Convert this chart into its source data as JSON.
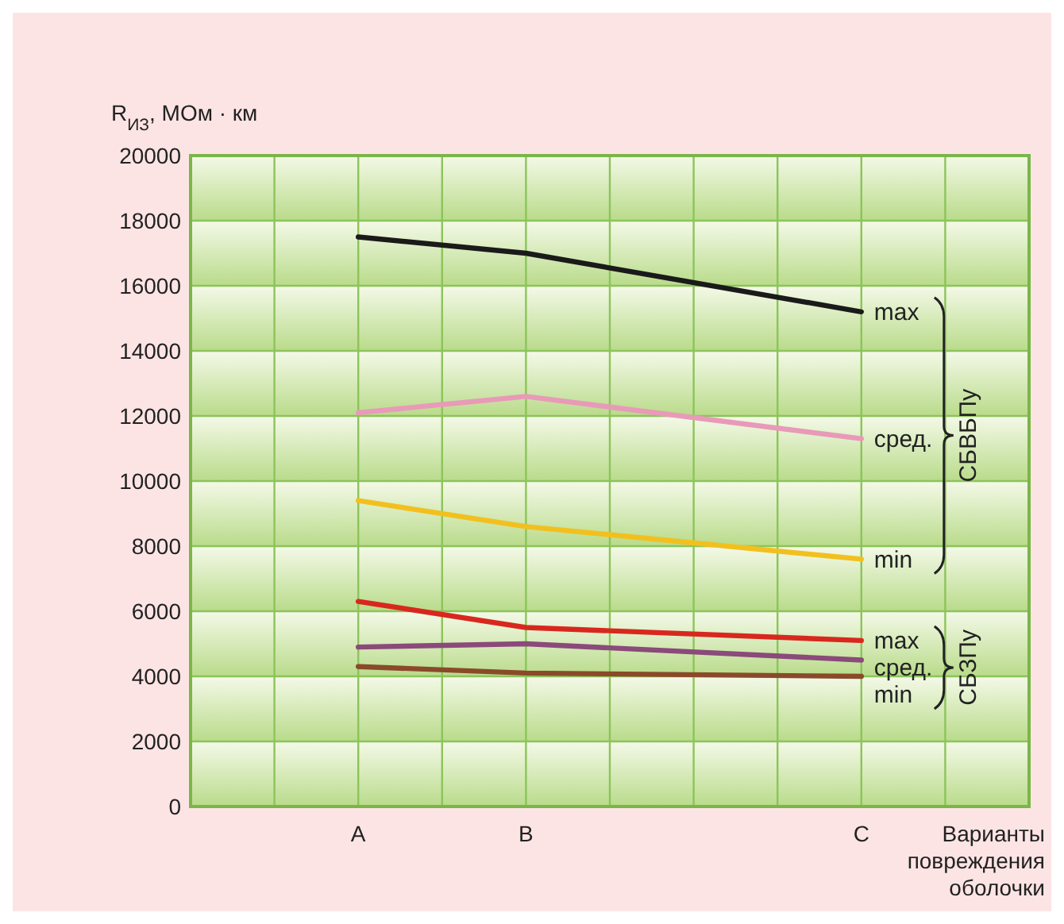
{
  "chart_data": {
    "type": "line",
    "xlabel": "Варианты повреждения оболочки",
    "ylabel": "R$_{ИЗ}$, МОм · км",
    "categories": [
      null,
      null,
      "A",
      null,
      "B",
      null,
      null,
      null,
      "C",
      null,
      null
    ],
    "ylim": [
      0,
      20000
    ],
    "yticks": [
      0,
      2000,
      4000,
      6000,
      8000,
      10000,
      12000,
      14000,
      16000,
      18000,
      20000
    ],
    "grid": true,
    "legend": false,
    "marker": "none",
    "line_style": "solid",
    "series": [
      {
        "name": "max",
        "color": "#1a1a1a",
        "x": [
          "A",
          "B",
          "C"
        ],
        "values": [
          17500,
          17000,
          15200
        ]
      },
      {
        "name": "сред.",
        "color": "#e89ab8",
        "x": [
          "A",
          "B",
          "C"
        ],
        "values": [
          12100,
          12600,
          11300
        ]
      },
      {
        "name": "min",
        "color": "#f2c01e",
        "x": [
          "A",
          "B",
          "C"
        ],
        "values": [
          9400,
          8600,
          7600
        ]
      },
      {
        "name": "max",
        "color": "#d8281e",
        "x": [
          "A",
          "B",
          "C"
        ],
        "values": [
          6300,
          5500,
          5100
        ]
      },
      {
        "name": "сред.",
        "color": "#8a4a7a",
        "x": [
          "A",
          "B",
          "C"
        ],
        "values": [
          4900,
          5000,
          4500
        ]
      },
      {
        "name": "min",
        "color": "#8a4a2a",
        "x": [
          "A",
          "B",
          "C"
        ],
        "values": [
          4300,
          4100,
          4000
        ]
      }
    ],
    "annotations": [
      "СБВБПу",
      "СБЗПу"
    ]
  }
}
